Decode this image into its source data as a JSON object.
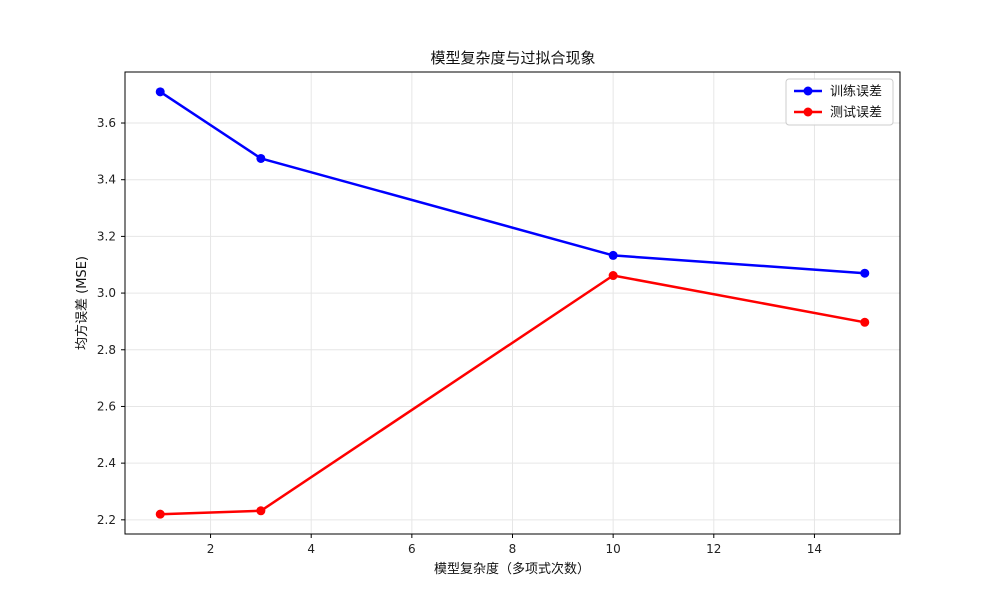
{
  "chart_data": {
    "type": "line",
    "title": "模型复杂度与过拟合现象",
    "xlabel": "模型复杂度（多项式次数）",
    "ylabel": "均方误差 (MSE)",
    "x": [
      1,
      3,
      10,
      15
    ],
    "series": [
      {
        "name": "训练误差",
        "color": "#0000ff",
        "values": [
          3.71,
          3.475,
          3.133,
          3.07
        ]
      },
      {
        "name": "测试误差",
        "color": "#ff0000",
        "values": [
          2.22,
          2.232,
          3.062,
          2.897
        ]
      }
    ],
    "xlim": [
      0.3,
      15.7
    ],
    "ylim": [
      2.15,
      3.78
    ],
    "xticks": [
      2,
      4,
      6,
      8,
      10,
      12,
      14
    ],
    "yticks": [
      2.2,
      2.4,
      2.6,
      2.8,
      3.0,
      3.2,
      3.4,
      3.6
    ],
    "ytick_labels": [
      "2.2",
      "2.4",
      "2.6",
      "2.8",
      "3.0",
      "3.2",
      "3.4",
      "3.6"
    ],
    "grid": true,
    "legend_position": "top-right",
    "marker": "circle"
  }
}
